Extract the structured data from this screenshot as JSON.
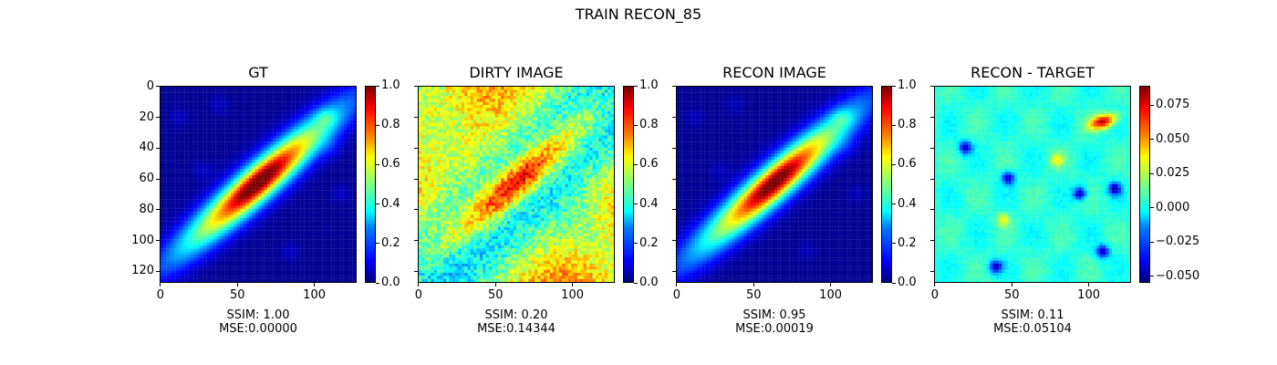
{
  "figure": {
    "suptitle": "TRAIN RECON_85"
  },
  "chart_data": [
    {
      "type": "heatmap",
      "title": "GT",
      "colormap": "jet",
      "image_size": [
        128,
        128
      ],
      "xticks": [
        "0",
        "50",
        "100"
      ],
      "xtick_values": [
        0,
        50,
        100
      ],
      "yticks": [
        "0",
        "20",
        "40",
        "60",
        "80",
        "100",
        "120"
      ],
      "ytick_values": [
        0,
        20,
        40,
        60,
        80,
        100,
        120
      ],
      "colorbar": {
        "range": [
          0.0,
          1.0
        ],
        "ticks": [
          "0.0",
          "0.2",
          "0.4",
          "0.6",
          "0.8",
          "1.0"
        ],
        "tick_values": [
          0.0,
          0.2,
          0.4,
          0.6,
          0.8,
          1.0
        ]
      },
      "metrics": {
        "ssim": "SSIM: 1.00",
        "mse": "MSE:0.00000"
      }
    },
    {
      "type": "heatmap",
      "title": "DIRTY IMAGE",
      "colormap": "jet",
      "image_size": [
        128,
        128
      ],
      "xticks": [
        "0",
        "50",
        "100"
      ],
      "xtick_values": [
        0,
        50,
        100
      ],
      "colorbar": {
        "range": [
          0.0,
          1.0
        ],
        "ticks": [
          "0.0",
          "0.2",
          "0.4",
          "0.6",
          "0.8",
          "1.0"
        ],
        "tick_values": [
          0.0,
          0.2,
          0.4,
          0.6,
          0.8,
          1.0
        ]
      },
      "metrics": {
        "ssim": "SSIM: 0.20",
        "mse": "MSE:0.14344"
      }
    },
    {
      "type": "heatmap",
      "title": "RECON IMAGE",
      "colormap": "jet",
      "image_size": [
        128,
        128
      ],
      "xticks": [
        "0",
        "50",
        "100"
      ],
      "xtick_values": [
        0,
        50,
        100
      ],
      "colorbar": {
        "range": [
          0.0,
          1.0
        ],
        "ticks": [
          "0.0",
          "0.2",
          "0.4",
          "0.6",
          "0.8",
          "1.0"
        ],
        "tick_values": [
          0.0,
          0.2,
          0.4,
          0.6,
          0.8,
          1.0
        ]
      },
      "metrics": {
        "ssim": "SSIM: 0.95",
        "mse": "MSE:0.00019"
      }
    },
    {
      "type": "heatmap",
      "title": "RECON - TARGET",
      "colormap": "jet",
      "image_size": [
        128,
        128
      ],
      "xticks": [
        "0",
        "50",
        "100"
      ],
      "xtick_values": [
        0,
        50,
        100
      ],
      "colorbar": {
        "range": [
          -0.055,
          0.089
        ],
        "ticks": [
          "−0.050",
          "−0.025",
          "0.000",
          "0.025",
          "0.050",
          "0.075"
        ],
        "tick_values": [
          -0.05,
          -0.025,
          0.0,
          0.025,
          0.05,
          0.075
        ]
      },
      "metrics": {
        "ssim": "SSIM: 0.11",
        "mse": "MSE:0.05104"
      }
    }
  ]
}
